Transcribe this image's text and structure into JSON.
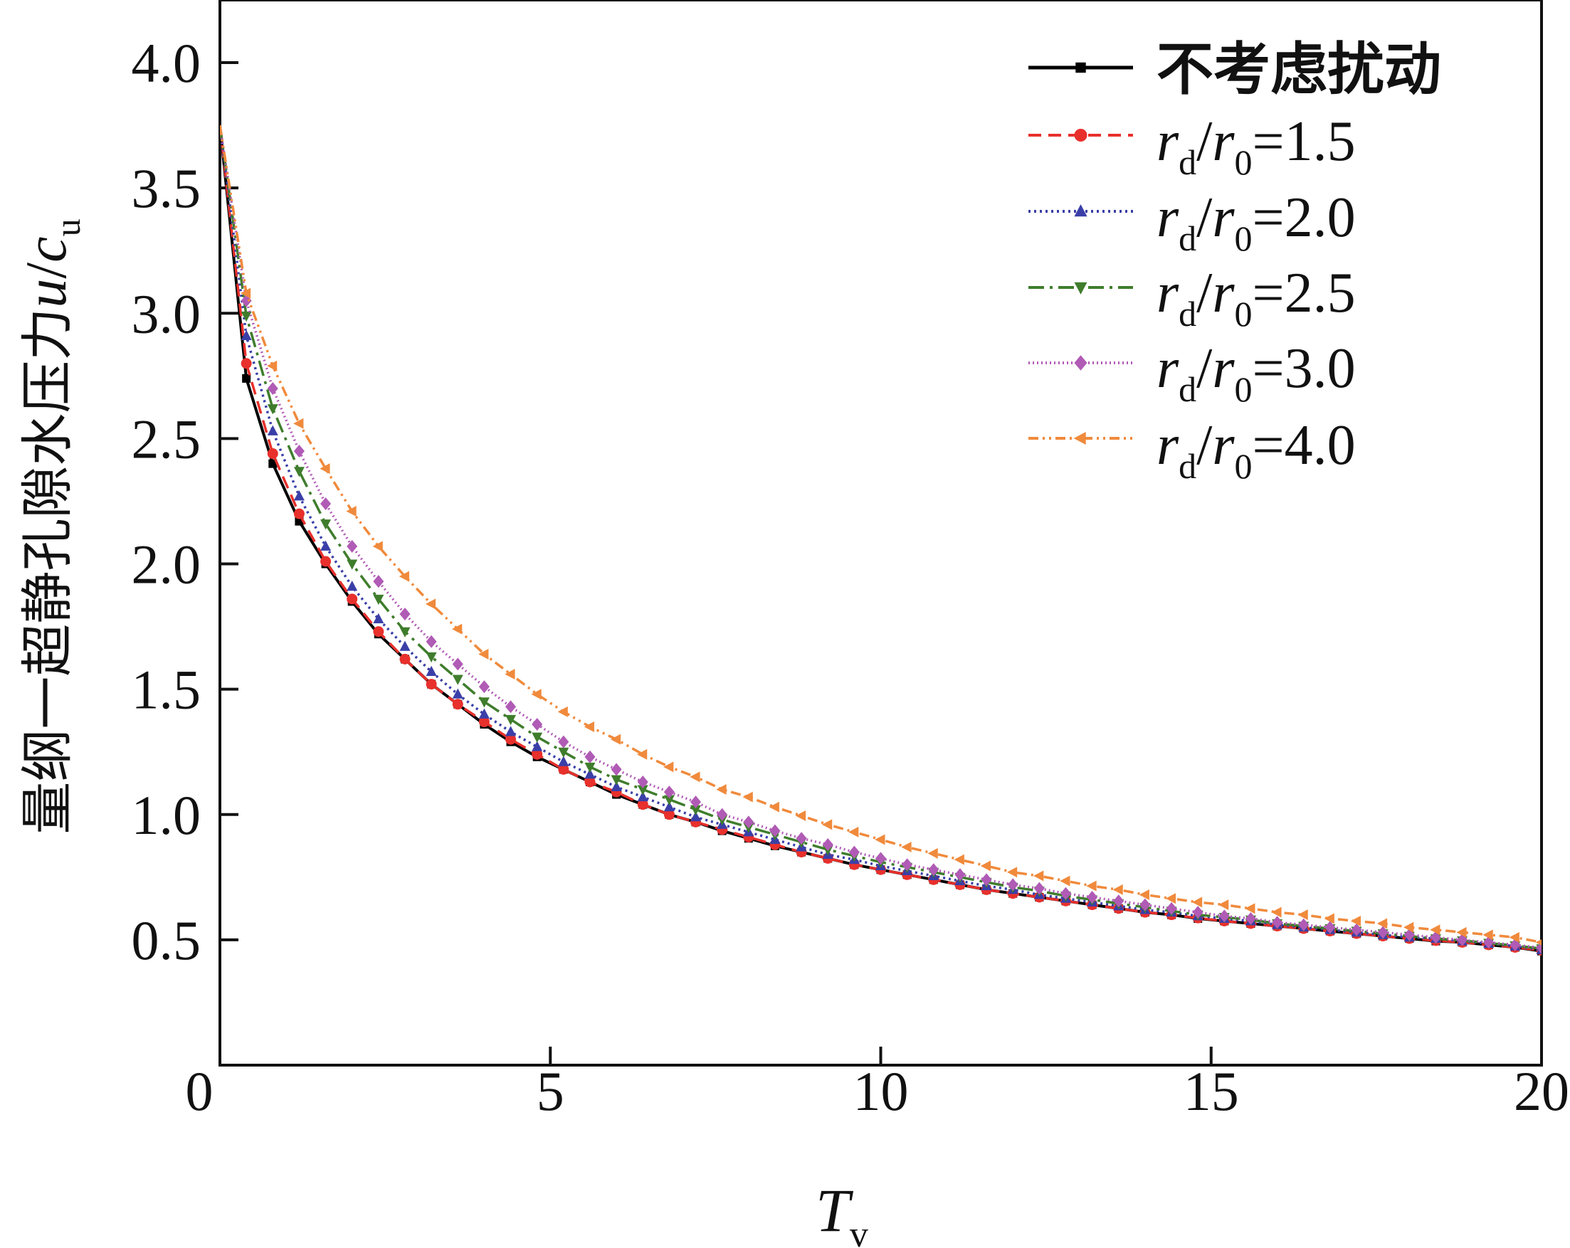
{
  "chart_data": {
    "type": "line",
    "title": "",
    "xlabel": {
      "main": "T",
      "sub": "v"
    },
    "ylabel": {
      "prefix": "量纲一超静孔隙水压力",
      "var": "u",
      "slash": "/",
      "c": "c",
      "sub": "u"
    },
    "xlim": [
      0,
      20
    ],
    "ylim": [
      0,
      4.25
    ],
    "x_ticks": [
      5,
      10,
      15,
      20
    ],
    "x_tick_labels": [
      "5",
      "10",
      "15",
      "20"
    ],
    "origin_label": "0",
    "y_ticks": [
      0.5,
      1.0,
      1.5,
      2.0,
      2.5,
      3.0,
      3.5,
      4.0
    ],
    "y_tick_labels": [
      "0.5",
      "1.0",
      "1.5",
      "2.0",
      "2.5",
      "3.0",
      "3.5",
      "4.0"
    ],
    "grid": false,
    "legend_position": "top-right",
    "x": [
      0,
      0.4,
      0.8,
      1.2,
      1.6,
      2.0,
      2.4,
      2.8,
      3.2,
      3.6,
      4.0,
      4.4,
      4.8,
      5.2,
      5.6,
      6.0,
      6.4,
      6.8,
      7.2,
      7.6,
      8.0,
      8.4,
      8.8,
      9.2,
      9.6,
      10.0,
      10.4,
      10.8,
      11.2,
      11.6,
      12.0,
      12.4,
      12.8,
      13.2,
      13.6,
      14.0,
      14.4,
      14.8,
      15.2,
      15.6,
      16.0,
      16.4,
      16.8,
      17.2,
      17.6,
      18.0,
      18.4,
      18.8,
      19.2,
      19.6,
      20.0
    ],
    "series": [
      {
        "legend_label": "不考虑扰动",
        "color": "#000000",
        "marker": "square",
        "dash": "",
        "values": [
          3.75,
          2.74,
          2.4,
          2.17,
          2.0,
          1.85,
          1.72,
          1.62,
          1.52,
          1.44,
          1.36,
          1.29,
          1.23,
          1.18,
          1.13,
          1.08,
          1.04,
          1.0,
          0.97,
          0.935,
          0.905,
          0.875,
          0.85,
          0.825,
          0.8,
          0.78,
          0.76,
          0.74,
          0.72,
          0.7,
          0.685,
          0.67,
          0.655,
          0.64,
          0.625,
          0.61,
          0.6,
          0.585,
          0.575,
          0.565,
          0.555,
          0.545,
          0.535,
          0.525,
          0.515,
          0.505,
          0.495,
          0.49,
          0.48,
          0.47,
          0.455
        ]
      },
      {
        "legend_label": "=1.5",
        "color": "#e8302c",
        "marker": "circle",
        "dash": "18,10",
        "values": [
          3.75,
          2.8,
          2.44,
          2.2,
          2.01,
          1.86,
          1.73,
          1.62,
          1.52,
          1.44,
          1.37,
          1.3,
          1.24,
          1.18,
          1.13,
          1.09,
          1.04,
          1.0,
          0.97,
          0.94,
          0.91,
          0.88,
          0.85,
          0.825,
          0.8,
          0.78,
          0.76,
          0.74,
          0.72,
          0.7,
          0.685,
          0.67,
          0.655,
          0.64,
          0.625,
          0.61,
          0.6,
          0.587,
          0.575,
          0.565,
          0.555,
          0.545,
          0.535,
          0.525,
          0.515,
          0.505,
          0.497,
          0.49,
          0.48,
          0.47,
          0.458
        ]
      },
      {
        "legend_label": "=2.0",
        "color": "#3a3fa8",
        "marker": "triangle-up",
        "dash": "3,5",
        "values": [
          3.75,
          2.91,
          2.53,
          2.27,
          2.07,
          1.91,
          1.78,
          1.67,
          1.57,
          1.48,
          1.4,
          1.33,
          1.27,
          1.21,
          1.16,
          1.11,
          1.07,
          1.03,
          0.99,
          0.96,
          0.93,
          0.9,
          0.87,
          0.84,
          0.82,
          0.795,
          0.775,
          0.755,
          0.735,
          0.715,
          0.7,
          0.68,
          0.665,
          0.65,
          0.635,
          0.62,
          0.61,
          0.595,
          0.585,
          0.575,
          0.56,
          0.55,
          0.54,
          0.53,
          0.52,
          0.51,
          0.505,
          0.495,
          0.485,
          0.475,
          0.46
        ]
      },
      {
        "legend_label": "=2.5",
        "color": "#3f7d2c",
        "marker": "triangle-down",
        "dash": "22,8,4,8",
        "values": [
          3.75,
          2.99,
          2.62,
          2.37,
          2.16,
          2.0,
          1.86,
          1.73,
          1.63,
          1.54,
          1.45,
          1.38,
          1.31,
          1.25,
          1.19,
          1.14,
          1.1,
          1.06,
          1.02,
          0.98,
          0.95,
          0.92,
          0.89,
          0.86,
          0.835,
          0.81,
          0.79,
          0.77,
          0.75,
          0.73,
          0.71,
          0.695,
          0.675,
          0.66,
          0.645,
          0.63,
          0.615,
          0.6,
          0.59,
          0.58,
          0.565,
          0.555,
          0.545,
          0.535,
          0.525,
          0.515,
          0.505,
          0.497,
          0.487,
          0.477,
          0.465
        ]
      },
      {
        "legend_label": "=3.0",
        "color": "#b05bb5",
        "marker": "diamond",
        "dash": "2,4",
        "values": [
          3.75,
          3.05,
          2.7,
          2.45,
          2.24,
          2.07,
          1.93,
          1.8,
          1.69,
          1.6,
          1.51,
          1.43,
          1.36,
          1.29,
          1.23,
          1.18,
          1.13,
          1.09,
          1.05,
          1.0,
          0.97,
          0.935,
          0.905,
          0.88,
          0.85,
          0.825,
          0.8,
          0.78,
          0.76,
          0.74,
          0.72,
          0.705,
          0.685,
          0.67,
          0.655,
          0.64,
          0.625,
          0.61,
          0.595,
          0.585,
          0.57,
          0.56,
          0.55,
          0.54,
          0.53,
          0.52,
          0.51,
          0.5,
          0.49,
          0.48,
          0.468
        ]
      },
      {
        "legend_label": "=4.0",
        "color": "#f08a3c",
        "marker": "triangle-left",
        "dash": "14,6,3,6,3,6",
        "values": [
          3.75,
          3.08,
          2.79,
          2.56,
          2.38,
          2.21,
          2.07,
          1.95,
          1.84,
          1.74,
          1.64,
          1.56,
          1.48,
          1.41,
          1.35,
          1.3,
          1.24,
          1.19,
          1.15,
          1.1,
          1.07,
          1.03,
          0.995,
          0.96,
          0.93,
          0.9,
          0.87,
          0.845,
          0.82,
          0.795,
          0.77,
          0.755,
          0.735,
          0.715,
          0.7,
          0.68,
          0.665,
          0.65,
          0.64,
          0.625,
          0.61,
          0.6,
          0.585,
          0.575,
          0.565,
          0.55,
          0.54,
          0.53,
          0.52,
          0.51,
          0.49
        ]
      }
    ],
    "legend_prefix": {
      "r": "r",
      "d": "d",
      "slash": "/",
      "zero": "0"
    }
  }
}
